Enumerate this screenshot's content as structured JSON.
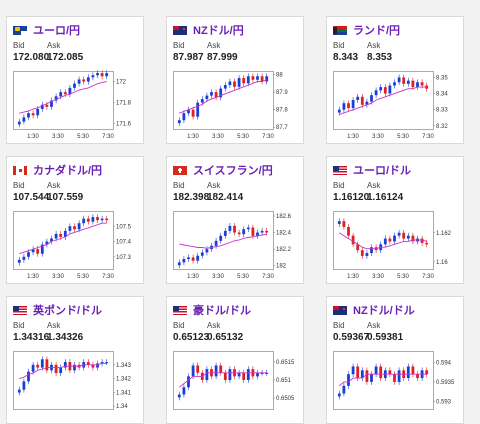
{
  "cards": [
    {
      "pair": "ユーロ/円",
      "bid": "172.080",
      "ask": "172.085",
      "flag": "eu",
      "yticks": [
        "172",
        "171.8",
        "171.6"
      ],
      "xticks": [
        "1:30",
        "3:30",
        "5:30",
        "7:30"
      ],
      "series": [
        171.62,
        171.66,
        171.7,
        171.68,
        171.74,
        171.78,
        171.76,
        171.82,
        171.86,
        171.9,
        171.88,
        171.94,
        171.98,
        172.02,
        172.0,
        172.04,
        172.06,
        172.08,
        172.05,
        172.08
      ],
      "ma": [
        171.7,
        171.71,
        171.72,
        171.74,
        171.75,
        171.77,
        171.79,
        171.81,
        171.83,
        171.85,
        171.87,
        171.88,
        171.9,
        171.92,
        171.93,
        171.94,
        171.96,
        171.98,
        171.99,
        172.0
      ],
      "ymin": 171.55,
      "ymax": 172.1
    },
    {
      "pair": "NZドル/円",
      "bid": "87.987",
      "ask": "87.999",
      "flag": "nz",
      "yticks": [
        "88",
        "87.9",
        "87.8",
        "87.7"
      ],
      "xticks": [
        "1:30",
        "3:30",
        "5:30",
        "7:30"
      ],
      "series": [
        87.74,
        87.78,
        87.8,
        87.76,
        87.84,
        87.86,
        87.88,
        87.9,
        87.87,
        87.92,
        87.94,
        87.96,
        87.93,
        87.98,
        87.95,
        87.99,
        87.97,
        87.99,
        87.96,
        87.99
      ],
      "ma": [
        87.78,
        87.79,
        87.8,
        87.81,
        87.82,
        87.83,
        87.85,
        87.86,
        87.87,
        87.88,
        87.89,
        87.9,
        87.91,
        87.92,
        87.93,
        87.94,
        87.95,
        87.96,
        87.96,
        87.97
      ],
      "ymin": 87.69,
      "ymax": 88.02
    },
    {
      "pair": "ランド/円",
      "bid": "8.343",
      "ask": "8.353",
      "flag": "za",
      "yticks": [
        "8.35",
        "8.34",
        "8.33",
        "8.32"
      ],
      "xticks": [
        "1:30",
        "3:30",
        "5:30",
        "7:30"
      ],
      "series": [
        8.33,
        8.334,
        8.331,
        8.336,
        8.338,
        8.333,
        8.335,
        8.339,
        8.342,
        8.344,
        8.34,
        8.345,
        8.347,
        8.35,
        8.346,
        8.348,
        8.344,
        8.347,
        8.345,
        8.343
      ],
      "ma": [
        8.327,
        8.328,
        8.329,
        8.33,
        8.331,
        8.332,
        8.333,
        8.334,
        8.336,
        8.337,
        8.338,
        8.339,
        8.34,
        8.341,
        8.342,
        8.343,
        8.343,
        8.344,
        8.344,
        8.344
      ],
      "ymin": 8.318,
      "ymax": 8.354
    },
    {
      "pair": "カナダドル/円",
      "bid": "107.544",
      "ask": "107.559",
      "flag": "ca",
      "yticks": [
        "107.5",
        "107.4",
        "107.3"
      ],
      "xticks": [
        "1:30",
        "3:30",
        "5:30",
        "7:30"
      ],
      "series": [
        107.28,
        107.3,
        107.33,
        107.35,
        107.32,
        107.38,
        107.4,
        107.42,
        107.45,
        107.43,
        107.47,
        107.5,
        107.48,
        107.52,
        107.55,
        107.53,
        107.56,
        107.54,
        107.55,
        107.54
      ],
      "ma": [
        107.32,
        107.33,
        107.34,
        107.35,
        107.36,
        107.37,
        107.38,
        107.4,
        107.41,
        107.42,
        107.43,
        107.45,
        107.46,
        107.47,
        107.48,
        107.49,
        107.5,
        107.51,
        107.52,
        107.52
      ],
      "ymin": 107.22,
      "ymax": 107.6
    },
    {
      "pair": "スイスフラン/円",
      "bid": "182.398",
      "ask": "182.414",
      "flag": "ch",
      "yticks": [
        "182.6",
        "182.4",
        "182.2",
        "182"
      ],
      "xticks": [
        "1:30",
        "3:30",
        "5:30",
        "7:30"
      ],
      "series": [
        182.04,
        182.08,
        182.1,
        182.06,
        182.12,
        182.16,
        182.2,
        182.24,
        182.3,
        182.36,
        182.42,
        182.48,
        182.4,
        182.38,
        182.44,
        182.46,
        182.36,
        182.4,
        182.42,
        182.4
      ],
      "ma": [
        182.26,
        182.25,
        182.24,
        182.23,
        182.22,
        182.22,
        182.21,
        182.22,
        182.23,
        182.24,
        182.26,
        182.28,
        182.3,
        182.31,
        182.33,
        182.34,
        182.35,
        182.36,
        182.37,
        182.38
      ],
      "ymin": 181.96,
      "ymax": 182.66
    },
    {
      "pair": "ユーロ/ドル",
      "bid": "1.16120",
      "ask": "1.16124",
      "flag": "us",
      "yticks": [
        "1.162",
        "1.16"
      ],
      "xticks": [
        "1:30",
        "3:30",
        "5:30",
        "7:30"
      ],
      "series": [
        1.1628,
        1.1624,
        1.1618,
        1.1612,
        1.1608,
        1.1604,
        1.1606,
        1.161,
        1.1608,
        1.1612,
        1.1616,
        1.1614,
        1.1618,
        1.162,
        1.1616,
        1.1618,
        1.1614,
        1.1616,
        1.1613,
        1.1612
      ],
      "ma": [
        1.162,
        1.1618,
        1.1616,
        1.1614,
        1.1612,
        1.161,
        1.1609,
        1.1609,
        1.1609,
        1.161,
        1.161,
        1.1611,
        1.1612,
        1.1613,
        1.1614,
        1.1614,
        1.1615,
        1.1615,
        1.1615,
        1.1614
      ],
      "ymin": 1.1595,
      "ymax": 1.1635
    },
    {
      "pair": "英ポンド/ドル",
      "bid": "1.34316",
      "ask": "1.34326",
      "flag": "us",
      "yticks": [
        "1.343",
        "1.342",
        "1.341",
        "1.34"
      ],
      "xticks": [],
      "series": [
        1.3412,
        1.3418,
        1.3425,
        1.343,
        1.3428,
        1.3434,
        1.3426,
        1.343,
        1.3424,
        1.3428,
        1.3432,
        1.3426,
        1.343,
        1.3428,
        1.3432,
        1.343,
        1.3428,
        1.3431,
        1.3432,
        1.3432
      ],
      "ma": [
        1.342,
        1.3421,
        1.3423,
        1.3424,
        1.3426,
        1.3427,
        1.3428,
        1.3428,
        1.3428,
        1.3428,
        1.3429,
        1.3429,
        1.3429,
        1.3429,
        1.343,
        1.343,
        1.343,
        1.343,
        1.3431,
        1.3431
      ],
      "ymin": 1.3398,
      "ymax": 1.344
    },
    {
      "pair": "豪ドル/ドル",
      "bid": "0.65123",
      "ask": "0.65132",
      "flag": "us",
      "yticks": [
        "0.6515",
        "0.651",
        "0.6505"
      ],
      "xticks": [],
      "series": [
        0.6506,
        0.6508,
        0.6511,
        0.6514,
        0.6512,
        0.651,
        0.6513,
        0.6511,
        0.6514,
        0.6512,
        0.651,
        0.6513,
        0.6511,
        0.6512,
        0.651,
        0.6513,
        0.6511,
        0.6512,
        0.6512,
        0.6512
      ],
      "ma": [
        0.6508,
        0.6509,
        0.651,
        0.6511,
        0.6511,
        0.6511,
        0.6512,
        0.6512,
        0.6512,
        0.6512,
        0.6512,
        0.6512,
        0.6512,
        0.6512,
        0.6512,
        0.6512,
        0.6512,
        0.6512,
        0.6512,
        0.6512
      ],
      "ymin": 0.6502,
      "ymax": 0.6518
    },
    {
      "pair": "NZドル/ドル",
      "bid": "0.59367",
      "ask": "0.59381",
      "flag": "nz",
      "yticks": [
        "0.594",
        "0.5935",
        "0.593"
      ],
      "xticks": [],
      "series": [
        0.5932,
        0.5934,
        0.5937,
        0.5939,
        0.5936,
        0.5938,
        0.5935,
        0.5937,
        0.5939,
        0.5936,
        0.5938,
        0.5937,
        0.5935,
        0.5938,
        0.5936,
        0.5939,
        0.5937,
        0.5936,
        0.5938,
        0.5937
      ],
      "ma": [
        0.5934,
        0.5935,
        0.5935,
        0.5936,
        0.5936,
        0.5936,
        0.5937,
        0.5937,
        0.5937,
        0.5937,
        0.5937,
        0.5937,
        0.5937,
        0.5937,
        0.5937,
        0.5937,
        0.5937,
        0.5937,
        0.5937,
        0.5937
      ],
      "ymin": 0.5928,
      "ymax": 0.5943
    }
  ],
  "labels": {
    "bid": "Bid",
    "ask": "Ask"
  },
  "colors": {
    "up": "#1a3fd6",
    "down": "#e02020",
    "ma": "#cc33cc",
    "pair": "#6a1fb5"
  }
}
